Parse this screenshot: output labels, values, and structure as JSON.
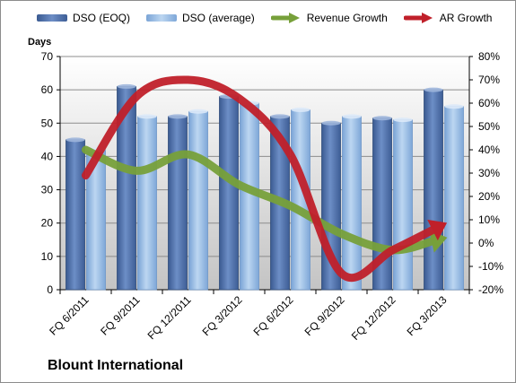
{
  "chart_data": {
    "type": "bar",
    "title": "Blount International",
    "ylabel": "Days",
    "xlabel": "",
    "categories": [
      "FQ 6/2011",
      "FQ 9/2011",
      "FQ 12/2011",
      "FQ 3/2012",
      "FQ 6/2012",
      "FQ 9/2012",
      "FQ 12/2012",
      "FQ 3/2013"
    ],
    "series": [
      {
        "name": "DSO (EOQ)",
        "kind": "bar",
        "axis": "left",
        "color": "#4f6fa8",
        "values": [
          45,
          61,
          52,
          58,
          52,
          50,
          51.5,
          60
        ]
      },
      {
        "name": "DSO (average)",
        "kind": "bar",
        "axis": "left",
        "color": "#8db4e2",
        "values": [
          42,
          52,
          53.5,
          56,
          54,
          52,
          51,
          55
        ]
      },
      {
        "name": "Revenue Growth",
        "kind": "arrow-line",
        "axis": "right",
        "color": "#77a03a",
        "values": [
          40,
          31,
          38,
          25,
          16,
          4,
          -3,
          2
        ]
      },
      {
        "name": "AR Growth",
        "kind": "arrow-line",
        "axis": "right",
        "color": "#c0202a",
        "values": [
          29,
          63,
          70,
          62,
          38,
          -13,
          -3,
          8
        ]
      }
    ],
    "ylim": [
      0,
      70
    ],
    "yticks": [
      0,
      10,
      20,
      30,
      40,
      50,
      60,
      70
    ],
    "y2lim": [
      -20,
      80
    ],
    "y2ticks": [
      "-20%",
      "-10%",
      "0%",
      "10%",
      "20%",
      "30%",
      "40%",
      "50%",
      "60%",
      "70%",
      "80%"
    ],
    "grid": true,
    "legend": "top"
  }
}
